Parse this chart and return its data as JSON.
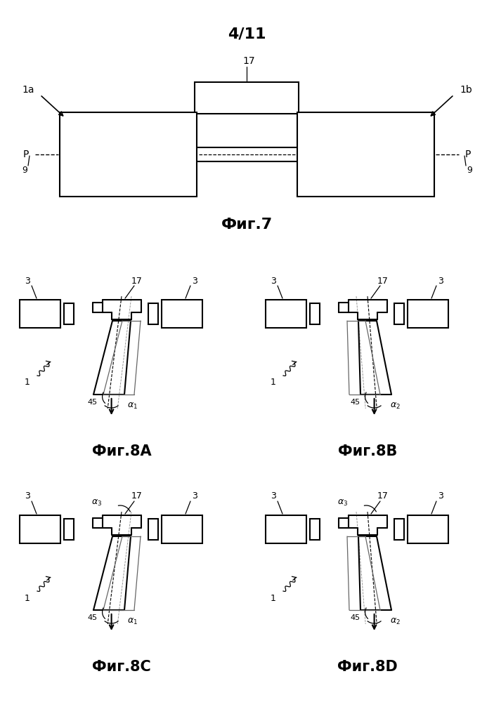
{
  "title": "4/11",
  "fig7_label": "Фиг.7",
  "fig8A_label": "Фиг.8A",
  "fig8B_label": "Фиг.8B",
  "fig8C_label": "Фиг.8C",
  "fig8D_label": "Фиг.8D",
  "bg_color": "#ffffff",
  "line_color": "#000000",
  "lw": 1.5
}
